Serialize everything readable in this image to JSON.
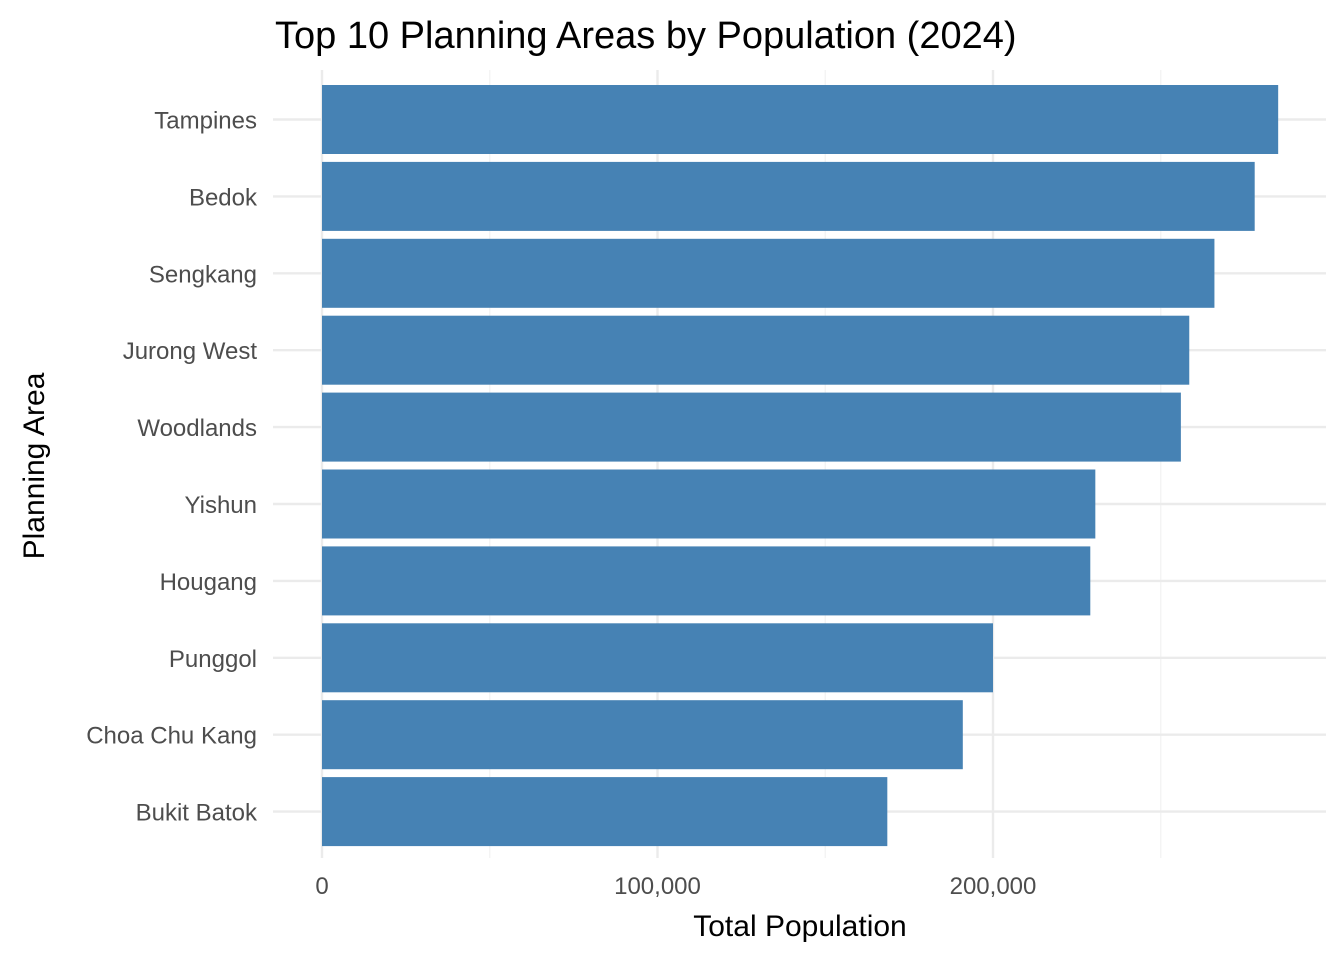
{
  "chart_data": {
    "type": "bar",
    "orientation": "horizontal",
    "title": "Top 10 Planning Areas by Population (2024)",
    "xlabel": "Total Population",
    "ylabel": "Planning Area",
    "categories": [
      "Tampines",
      "Bedok",
      "Sengkang",
      "Jurong West",
      "Woodlands",
      "Yishun",
      "Hougang",
      "Punggol",
      "Choa Chu Kang",
      "Bukit Batok"
    ],
    "values": [
      285000,
      278000,
      266000,
      258500,
      256000,
      230500,
      229000,
      200000,
      191000,
      168500
    ],
    "xlim": [
      0,
      300000
    ],
    "xticks": [
      0,
      100000,
      200000
    ],
    "xtick_labels": [
      "0",
      "100,000",
      "200,000"
    ],
    "bar_color": "#4682b4",
    "grid": true,
    "legend": "none"
  }
}
